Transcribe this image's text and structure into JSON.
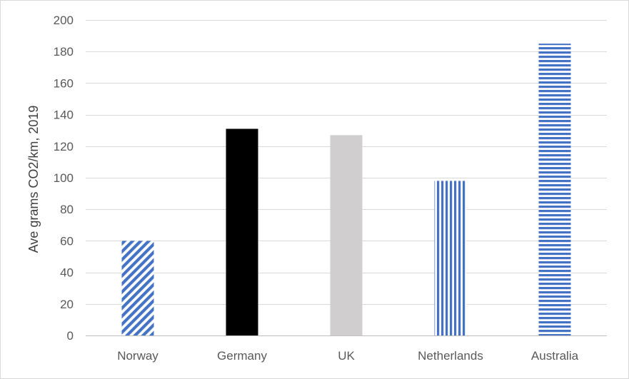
{
  "chart_data": {
    "type": "bar",
    "title": "",
    "xlabel": "",
    "ylabel": "Ave grams CO2/km, 2019",
    "ylim": [
      0,
      200
    ],
    "yticks": [
      0,
      20,
      40,
      60,
      80,
      100,
      120,
      140,
      160,
      180,
      200
    ],
    "grid": true,
    "categories": [
      "Norway",
      "Germany",
      "UK",
      "Netherlands",
      "Australia"
    ],
    "values": [
      60,
      131,
      127,
      98,
      185
    ],
    "bar_styles": [
      {
        "fill": "diagonal-hatch",
        "color": "#4472c4"
      },
      {
        "fill": "solid",
        "color": "#000000"
      },
      {
        "fill": "solid",
        "color": "#d0cece"
      },
      {
        "fill": "vertical-stripes",
        "color": "#4472c4"
      },
      {
        "fill": "horizontal-stripes",
        "color": "#4472c4"
      }
    ]
  }
}
